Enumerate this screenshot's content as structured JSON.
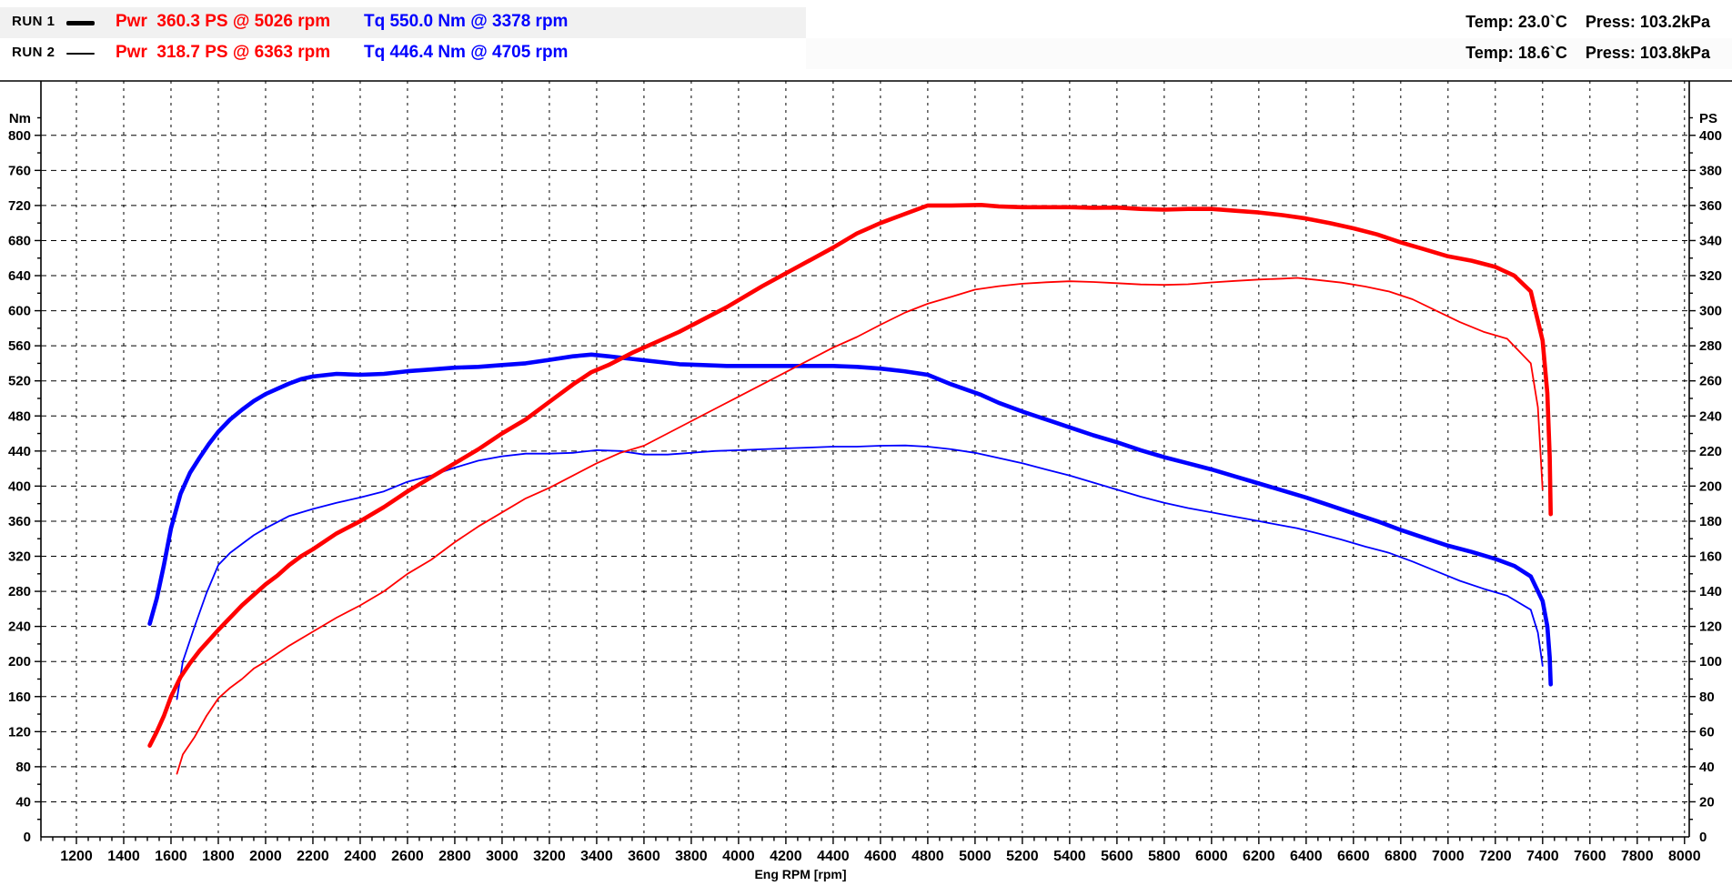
{
  "legend": {
    "runs": [
      {
        "label": "RUN 1",
        "power": "Pwr  360.3 PS @ 5026 rpm",
        "torque": "Tq 550.0 Nm @ 3378 rpm",
        "temp": "Temp: 23.0`C",
        "press": "Press: 103.2kPa",
        "line_style": "thick"
      },
      {
        "label": "RUN 2",
        "power": "Pwr  318.7 PS @ 6363 rpm",
        "torque": "Tq 446.4 Nm @ 4705 rpm",
        "temp": "Temp: 18.6`C",
        "press": "Press: 103.8kPa",
        "line_style": "thin"
      }
    ],
    "power_color": "#ff0000",
    "torque_color": "#0000ff"
  },
  "chart_data": {
    "type": "line",
    "xlabel": "Eng RPM [rpm]",
    "ylabel_left": "Nm",
    "ylabel_right": "PS",
    "x_range": [
      1050,
      8020
    ],
    "x_tick_major": 200,
    "x_tick_minor": 50,
    "x_label_start": 1200,
    "x_label_end": 8000,
    "y_left_range": [
      0,
      862
    ],
    "y_left_tick_major": 40,
    "y_left_tick_minor": 20,
    "y_left_label_max": 800,
    "y_right_range": [
      0,
      431
    ],
    "y_right_tick_major": 20,
    "y_right_tick_minor": 10,
    "y_right_label_max": 400,
    "grid": "dashed",
    "legend_position": "top",
    "series": [
      {
        "name": "RUN 2 Torque",
        "axis": "Nm",
        "color": "#0000ff",
        "width": 1.8,
        "points": [
          [
            1625,
            157
          ],
          [
            1650,
            200
          ],
          [
            1700,
            240
          ],
          [
            1750,
            278
          ],
          [
            1800,
            310
          ],
          [
            1850,
            324
          ],
          [
            1900,
            334
          ],
          [
            1950,
            344
          ],
          [
            2000,
            352
          ],
          [
            2100,
            366
          ],
          [
            2200,
            374
          ],
          [
            2300,
            381
          ],
          [
            2400,
            387
          ],
          [
            2500,
            394
          ],
          [
            2600,
            405
          ],
          [
            2700,
            412
          ],
          [
            2800,
            421
          ],
          [
            2900,
            429
          ],
          [
            3000,
            434
          ],
          [
            3100,
            437
          ],
          [
            3200,
            437
          ],
          [
            3300,
            438
          ],
          [
            3400,
            441
          ],
          [
            3500,
            440
          ],
          [
            3600,
            436
          ],
          [
            3700,
            436
          ],
          [
            3800,
            438
          ],
          [
            3900,
            440
          ],
          [
            4000,
            441
          ],
          [
            4100,
            442
          ],
          [
            4200,
            443
          ],
          [
            4300,
            444
          ],
          [
            4400,
            445
          ],
          [
            4500,
            445
          ],
          [
            4600,
            446
          ],
          [
            4705,
            446.4
          ],
          [
            4800,
            445
          ],
          [
            4900,
            442
          ],
          [
            5000,
            438
          ],
          [
            5100,
            432
          ],
          [
            5200,
            426
          ],
          [
            5300,
            419
          ],
          [
            5400,
            412
          ],
          [
            5500,
            404
          ],
          [
            5600,
            396
          ],
          [
            5700,
            388
          ],
          [
            5800,
            381
          ],
          [
            5900,
            375
          ],
          [
            6000,
            370
          ],
          [
            6100,
            365
          ],
          [
            6200,
            360
          ],
          [
            6300,
            355
          ],
          [
            6363,
            352
          ],
          [
            6450,
            346
          ],
          [
            6550,
            339
          ],
          [
            6650,
            331
          ],
          [
            6750,
            324
          ],
          [
            6850,
            314
          ],
          [
            6950,
            303
          ],
          [
            7050,
            292
          ],
          [
            7150,
            283
          ],
          [
            7250,
            275
          ],
          [
            7350,
            259
          ],
          [
            7380,
            233
          ],
          [
            7400,
            195
          ]
        ]
      },
      {
        "name": "RUN 1 Torque",
        "axis": "Nm",
        "color": "#0000ff",
        "width": 4.6,
        "points": [
          [
            1510,
            243
          ],
          [
            1540,
            272
          ],
          [
            1570,
            310
          ],
          [
            1600,
            352
          ],
          [
            1640,
            391
          ],
          [
            1680,
            415
          ],
          [
            1720,
            432
          ],
          [
            1760,
            448
          ],
          [
            1800,
            462
          ],
          [
            1850,
            476
          ],
          [
            1900,
            487
          ],
          [
            1950,
            497
          ],
          [
            2000,
            505
          ],
          [
            2050,
            511
          ],
          [
            2100,
            517
          ],
          [
            2150,
            522
          ],
          [
            2200,
            525
          ],
          [
            2300,
            528
          ],
          [
            2400,
            527
          ],
          [
            2500,
            528
          ],
          [
            2600,
            531
          ],
          [
            2700,
            533
          ],
          [
            2800,
            535
          ],
          [
            2900,
            536
          ],
          [
            3000,
            538
          ],
          [
            3100,
            540
          ],
          [
            3200,
            544
          ],
          [
            3300,
            548
          ],
          [
            3378,
            550
          ],
          [
            3450,
            548
          ],
          [
            3550,
            545
          ],
          [
            3650,
            542
          ],
          [
            3750,
            539
          ],
          [
            3850,
            538
          ],
          [
            3950,
            537
          ],
          [
            4100,
            537
          ],
          [
            4250,
            537
          ],
          [
            4400,
            537
          ],
          [
            4500,
            536
          ],
          [
            4600,
            534
          ],
          [
            4700,
            531
          ],
          [
            4800,
            527
          ],
          [
            4900,
            516
          ],
          [
            5026,
            504
          ],
          [
            5100,
            495
          ],
          [
            5200,
            485
          ],
          [
            5300,
            476
          ],
          [
            5400,
            467
          ],
          [
            5500,
            458
          ],
          [
            5600,
            450
          ],
          [
            5700,
            441
          ],
          [
            5800,
            433
          ],
          [
            5900,
            426
          ],
          [
            6000,
            419
          ],
          [
            6100,
            411
          ],
          [
            6200,
            403
          ],
          [
            6300,
            395
          ],
          [
            6400,
            387
          ],
          [
            6500,
            378
          ],
          [
            6600,
            369
          ],
          [
            6700,
            360
          ],
          [
            6800,
            350
          ],
          [
            6900,
            341
          ],
          [
            7000,
            332
          ],
          [
            7100,
            325
          ],
          [
            7200,
            317
          ],
          [
            7280,
            309
          ],
          [
            7350,
            297
          ],
          [
            7400,
            269
          ],
          [
            7420,
            240
          ],
          [
            7430,
            205
          ],
          [
            7434,
            174
          ]
        ]
      },
      {
        "name": "RUN 2 Power",
        "axis": "PS",
        "color": "#ff0000",
        "width": 1.8,
        "points": [
          [
            1625,
            36
          ],
          [
            1650,
            47
          ],
          [
            1700,
            57
          ],
          [
            1750,
            69
          ],
          [
            1800,
            79
          ],
          [
            1850,
            85
          ],
          [
            1900,
            90
          ],
          [
            1950,
            96
          ],
          [
            2000,
            100
          ],
          [
            2100,
            109
          ],
          [
            2200,
            117
          ],
          [
            2300,
            125
          ],
          [
            2400,
            132
          ],
          [
            2500,
            140
          ],
          [
            2600,
            150
          ],
          [
            2700,
            158
          ],
          [
            2800,
            168
          ],
          [
            2900,
            177
          ],
          [
            3000,
            185
          ],
          [
            3100,
            193
          ],
          [
            3200,
            199
          ],
          [
            3300,
            206
          ],
          [
            3400,
            213
          ],
          [
            3500,
            219
          ],
          [
            3600,
            223
          ],
          [
            3700,
            230
          ],
          [
            3800,
            237
          ],
          [
            3900,
            244
          ],
          [
            4000,
            251
          ],
          [
            4100,
            258
          ],
          [
            4200,
            265
          ],
          [
            4300,
            272
          ],
          [
            4400,
            279
          ],
          [
            4500,
            285
          ],
          [
            4600,
            292
          ],
          [
            4705,
            299
          ],
          [
            4800,
            304
          ],
          [
            4900,
            308
          ],
          [
            5000,
            312
          ],
          [
            5100,
            314
          ],
          [
            5200,
            315.4
          ],
          [
            5300,
            316.2
          ],
          [
            5400,
            316.8
          ],
          [
            5500,
            316.4
          ],
          [
            5600,
            315.7
          ],
          [
            5700,
            315
          ],
          [
            5800,
            314.7
          ],
          [
            5900,
            315.1
          ],
          [
            6000,
            316.1
          ],
          [
            6100,
            317
          ],
          [
            6200,
            317.8
          ],
          [
            6300,
            318.3
          ],
          [
            6363,
            318.7
          ],
          [
            6450,
            317.5
          ],
          [
            6550,
            316
          ],
          [
            6650,
            313.8
          ],
          [
            6750,
            311
          ],
          [
            6850,
            306.5
          ],
          [
            6950,
            300
          ],
          [
            7050,
            293.5
          ],
          [
            7150,
            288
          ],
          [
            7250,
            284
          ],
          [
            7350,
            270
          ],
          [
            7380,
            245
          ],
          [
            7400,
            198
          ]
        ]
      },
      {
        "name": "RUN 1 Power",
        "axis": "PS",
        "color": "#ff0000",
        "width": 4.6,
        "points": [
          [
            1510,
            52
          ],
          [
            1540,
            60
          ],
          [
            1570,
            69
          ],
          [
            1600,
            80
          ],
          [
            1640,
            91
          ],
          [
            1680,
            99
          ],
          [
            1720,
            106
          ],
          [
            1760,
            112
          ],
          [
            1800,
            118
          ],
          [
            1850,
            125
          ],
          [
            1900,
            132
          ],
          [
            1950,
            138
          ],
          [
            2000,
            144
          ],
          [
            2050,
            149
          ],
          [
            2100,
            155
          ],
          [
            2150,
            160
          ],
          [
            2200,
            164
          ],
          [
            2300,
            173
          ],
          [
            2400,
            180
          ],
          [
            2500,
            188
          ],
          [
            2600,
            197
          ],
          [
            2700,
            205
          ],
          [
            2800,
            213
          ],
          [
            2900,
            221
          ],
          [
            3000,
            230
          ],
          [
            3100,
            238
          ],
          [
            3200,
            248
          ],
          [
            3300,
            258
          ],
          [
            3378,
            265
          ],
          [
            3450,
            269
          ],
          [
            3550,
            276
          ],
          [
            3650,
            282
          ],
          [
            3750,
            288
          ],
          [
            3850,
            295
          ],
          [
            3950,
            302
          ],
          [
            4100,
            314
          ],
          [
            4250,
            325
          ],
          [
            4400,
            336
          ],
          [
            4500,
            344
          ],
          [
            4600,
            350
          ],
          [
            4700,
            355
          ],
          [
            4800,
            360
          ],
          [
            4900,
            360
          ],
          [
            5026,
            360.3
          ],
          [
            5100,
            359.5
          ],
          [
            5200,
            359
          ],
          [
            5300,
            359
          ],
          [
            5400,
            359
          ],
          [
            5500,
            358.7
          ],
          [
            5600,
            358.8
          ],
          [
            5700,
            358
          ],
          [
            5800,
            357.6
          ],
          [
            5900,
            358
          ],
          [
            6000,
            358
          ],
          [
            6100,
            357
          ],
          [
            6200,
            356
          ],
          [
            6300,
            354.5
          ],
          [
            6400,
            352.6
          ],
          [
            6500,
            350
          ],
          [
            6600,
            347
          ],
          [
            6700,
            343.5
          ],
          [
            6800,
            339
          ],
          [
            6900,
            335
          ],
          [
            7000,
            331
          ],
          [
            7100,
            328.5
          ],
          [
            7200,
            325
          ],
          [
            7280,
            320
          ],
          [
            7350,
            311
          ],
          [
            7400,
            283
          ],
          [
            7420,
            253
          ],
          [
            7430,
            217
          ],
          [
            7434,
            184
          ]
        ]
      }
    ]
  }
}
